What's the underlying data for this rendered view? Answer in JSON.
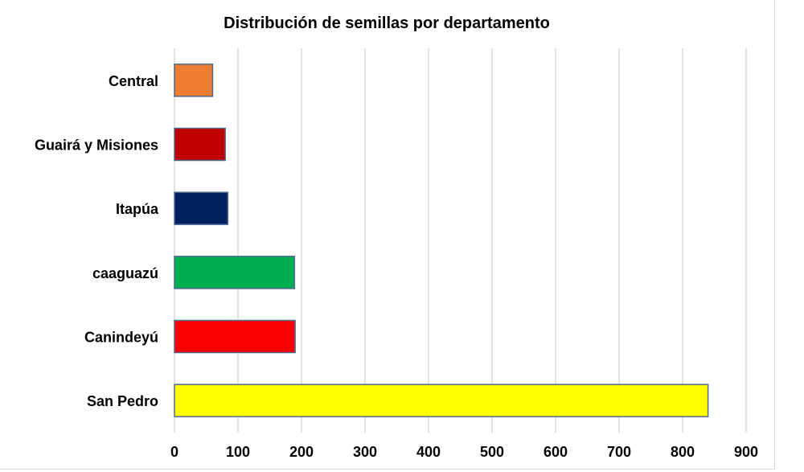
{
  "chart_data": {
    "type": "bar",
    "orientation": "horizontal",
    "title": "Distribución de semillas por departamento",
    "xlabel": "",
    "ylabel": "",
    "categories": [
      "Central",
      "Guairá y Misiones",
      "Itapúa",
      "caaguazú",
      "Canindeyú",
      "San Pedro"
    ],
    "values": [
      60,
      80,
      84,
      189,
      190,
      840
    ],
    "colors": [
      "#ed7d31",
      "#c00000",
      "#002060",
      "#00b050",
      "#ff0000",
      "#ffff00"
    ],
    "xlim": [
      0,
      900
    ],
    "xticks": [
      0,
      100,
      200,
      300,
      400,
      500,
      600,
      700,
      800,
      900
    ],
    "grid": "vertical",
    "legend": "none",
    "bar_border_color": "#4f6a8f",
    "grid_color": "#d9d9d9"
  }
}
